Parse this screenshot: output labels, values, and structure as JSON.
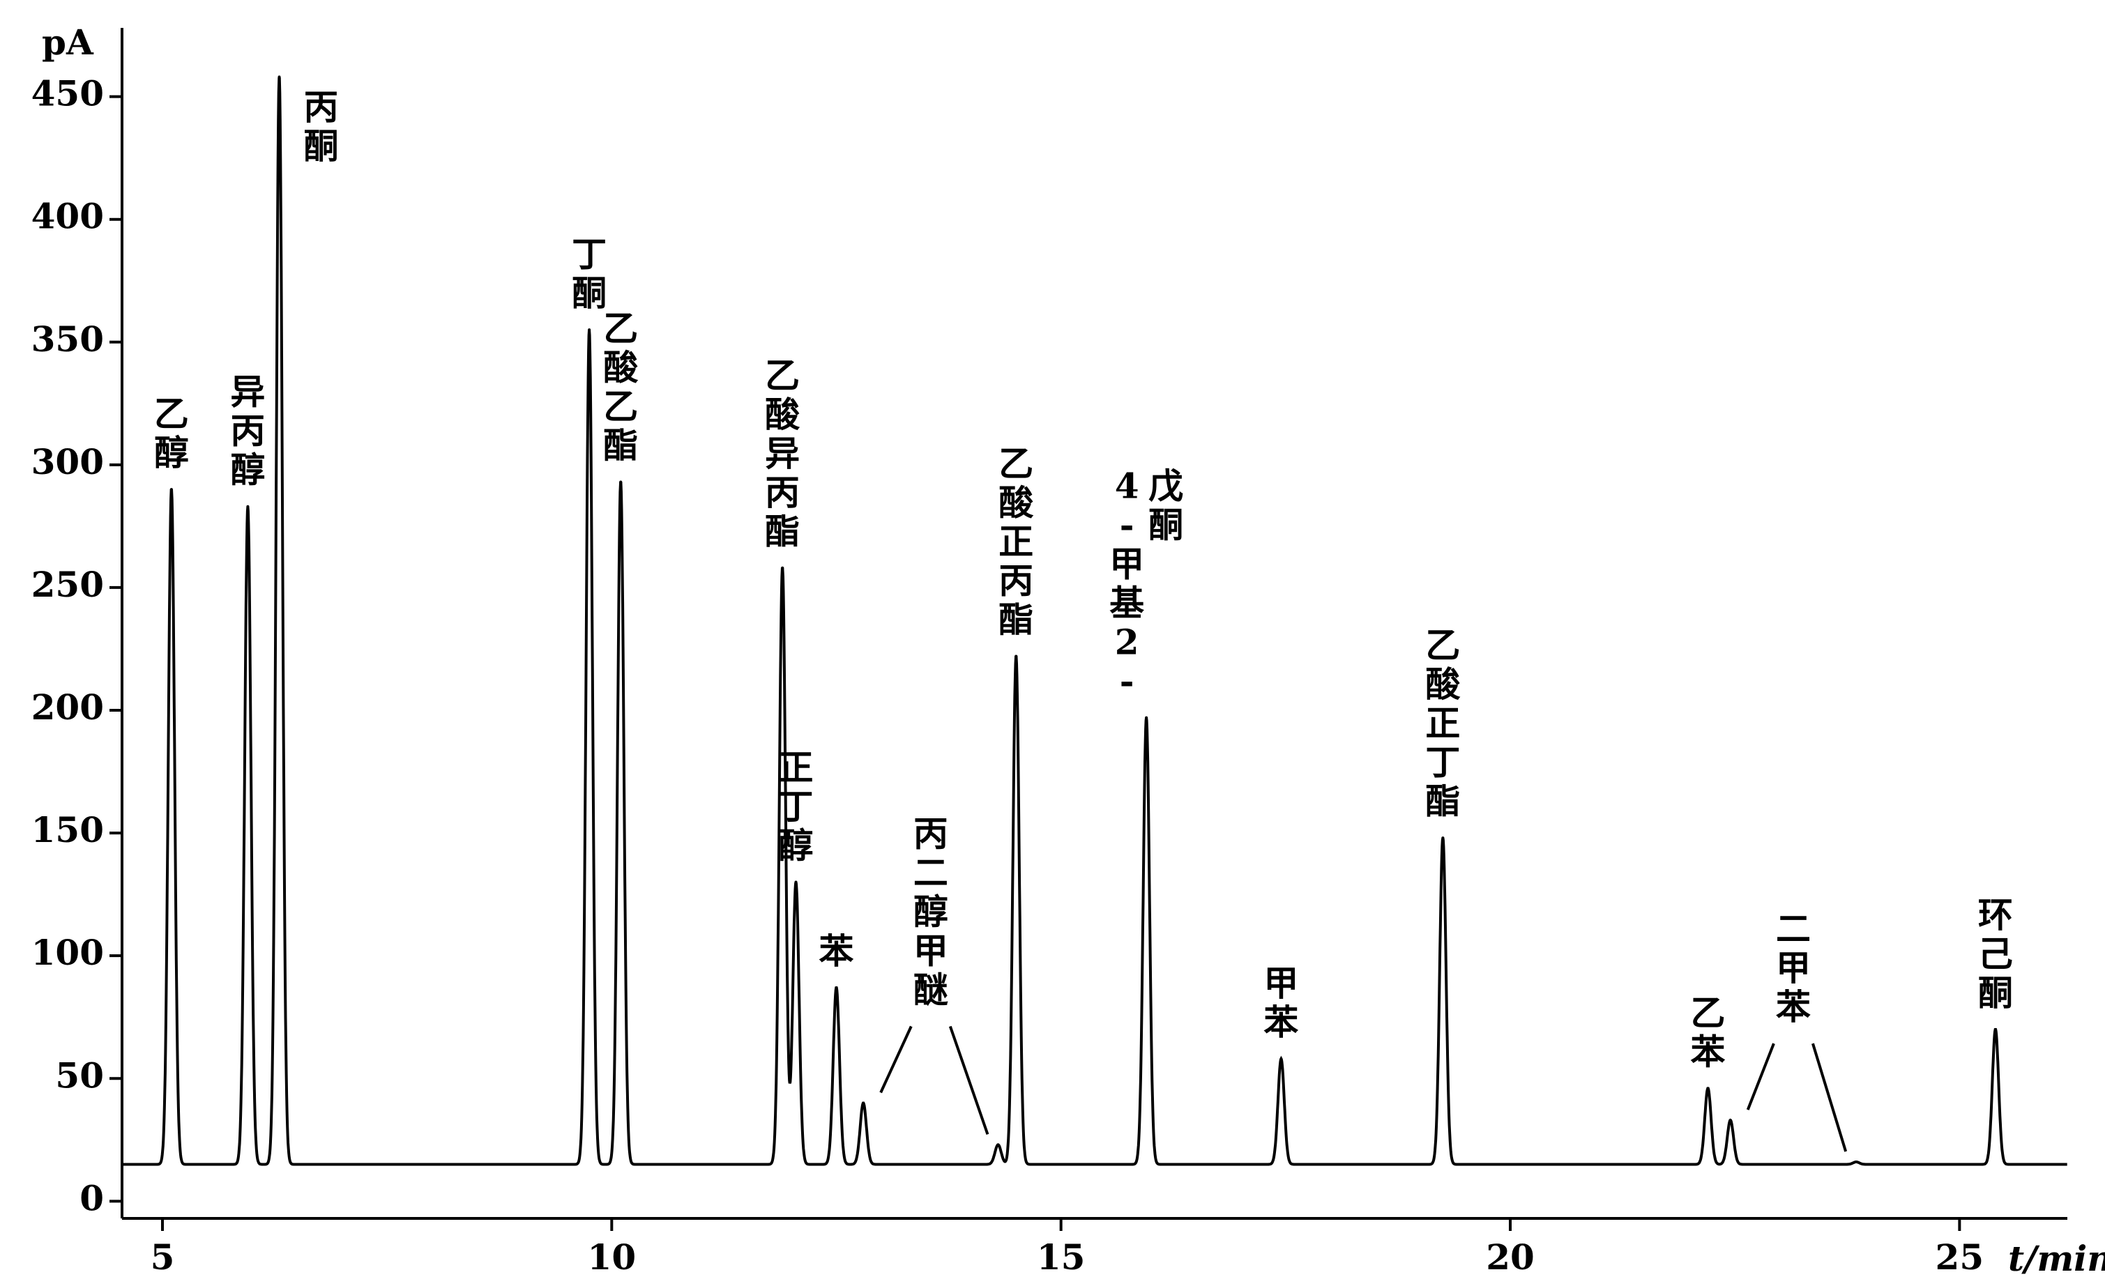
{
  "chart_data": {
    "type": "chromatogram",
    "ylabel": "pA",
    "xlabel": "t/min",
    "xlim": [
      4.55,
      26.2
    ],
    "ylim": [
      -7,
      478
    ],
    "xticks": [
      5,
      10,
      15,
      20,
      25
    ],
    "yticks": [
      0,
      50,
      100,
      150,
      200,
      250,
      300,
      350,
      400,
      450
    ],
    "baseline": 15,
    "color": "#000000",
    "peaks": [
      {
        "x": 5.1,
        "y": 290,
        "label": "乙醇"
      },
      {
        "x": 5.95,
        "y": 283,
        "label": "异丙醇"
      },
      {
        "x": 6.3,
        "y": 458,
        "label": "丙酮"
      },
      {
        "x": 9.75,
        "y": 355,
        "label": "丁酮"
      },
      {
        "x": 10.1,
        "y": 293,
        "label": "乙酸乙酯"
      },
      {
        "x": 11.9,
        "y": 258,
        "label": "乙酸异丙酯"
      },
      {
        "x": 12.05,
        "y": 130,
        "label": "正丁醇"
      },
      {
        "x": 12.5,
        "y": 87,
        "label": "苯"
      },
      {
        "x": 12.8,
        "y": 40,
        "label": null
      },
      {
        "x": 14.3,
        "y": 23,
        "label": null
      },
      {
        "x": 14.5,
        "y": 222,
        "label": "乙酸正丙酯"
      },
      {
        "x": 15.95,
        "y": 197,
        "label": "4-甲基2-戊酮"
      },
      {
        "x": 17.45,
        "y": 58,
        "label": "甲苯"
      },
      {
        "x": 19.25,
        "y": 148,
        "label": "乙酸正丁酯"
      },
      {
        "x": 22.2,
        "y": 46,
        "label": "乙苯"
      },
      {
        "x": 22.45,
        "y": 33,
        "label": null
      },
      {
        "x": 23.85,
        "y": 16,
        "label": null
      },
      {
        "x": 25.4,
        "y": 70,
        "label": "环己酮"
      }
    ],
    "annotations": [
      "丙二醇甲醚",
      "二甲苯"
    ]
  }
}
